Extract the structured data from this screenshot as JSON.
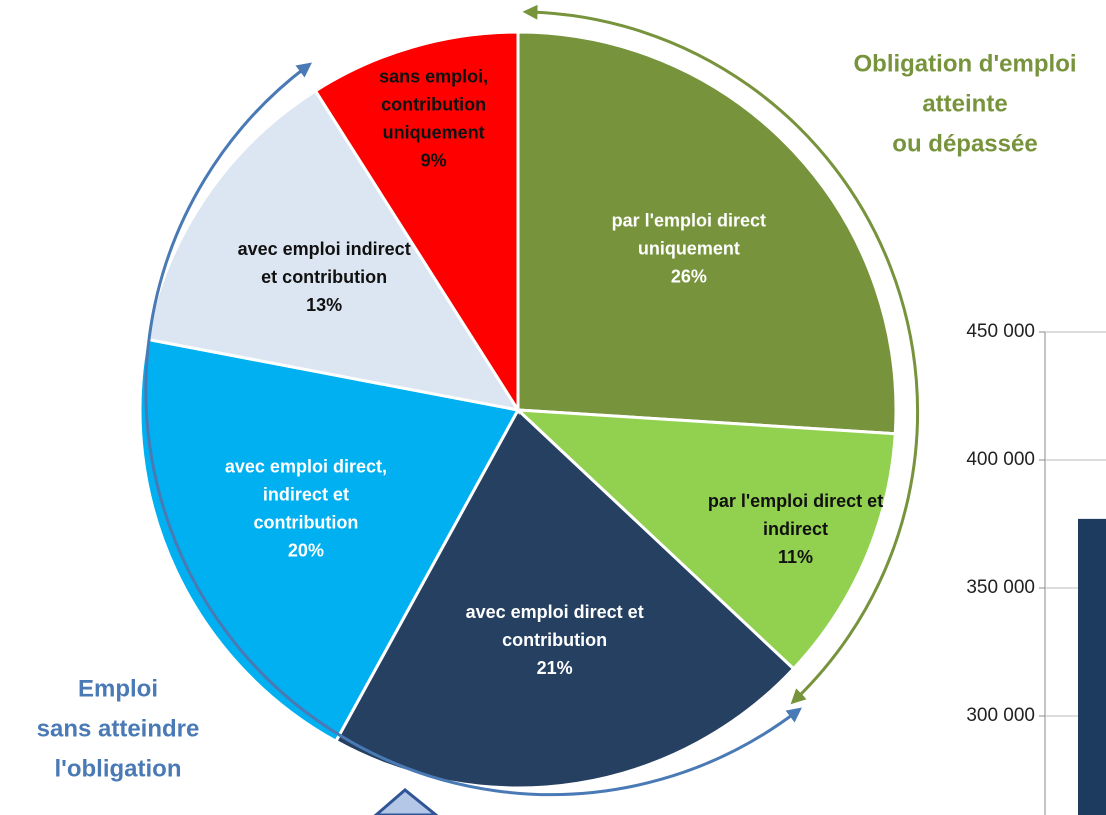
{
  "chart_data": [
    {
      "type": "pie",
      "categories": [
        [
          "par l'emploi direct",
          "uniquement"
        ],
        [
          "par l'emploi direct et",
          "indirect"
        ],
        [
          "avec emploi direct et",
          "contribution"
        ],
        [
          "avec emploi direct,",
          "indirect  et",
          "contribution"
        ],
        [
          "avec emploi indirect",
          "et contribution"
        ],
        [
          "sans emploi,",
          "contribution",
          "uniquement"
        ]
      ],
      "values": [
        26,
        11,
        21,
        20,
        13,
        9
      ],
      "value_labels": [
        "26%",
        "11%",
        "21%",
        "20%",
        "13%",
        "9%"
      ],
      "colors": [
        "#77933c",
        "#92d050",
        "#264061",
        "#00b0f0",
        "#dce6f2",
        "#ff0000"
      ],
      "annotations": [
        {
          "lines": [
            "Obligation d'emploi",
            "atteinte",
            "ou dépassée"
          ],
          "color": "#77933c"
        },
        {
          "lines": [
            "Emploi",
            "sans atteindre",
            "l'obligation"
          ],
          "color": "#4a7ab5"
        }
      ]
    },
    {
      "type": "bar",
      "categories": [
        null
      ],
      "values": [
        377000
      ],
      "color": "#1d3a5f",
      "ylim": [
        260000,
        450000
      ],
      "yticks": [
        {
          "value": 300000,
          "label": "300 000"
        },
        {
          "value": 350000,
          "label": "350 000"
        },
        {
          "value": 400000,
          "label": "400 000"
        },
        {
          "value": 450000,
          "label": "450 000"
        }
      ],
      "grid": true
    }
  ]
}
